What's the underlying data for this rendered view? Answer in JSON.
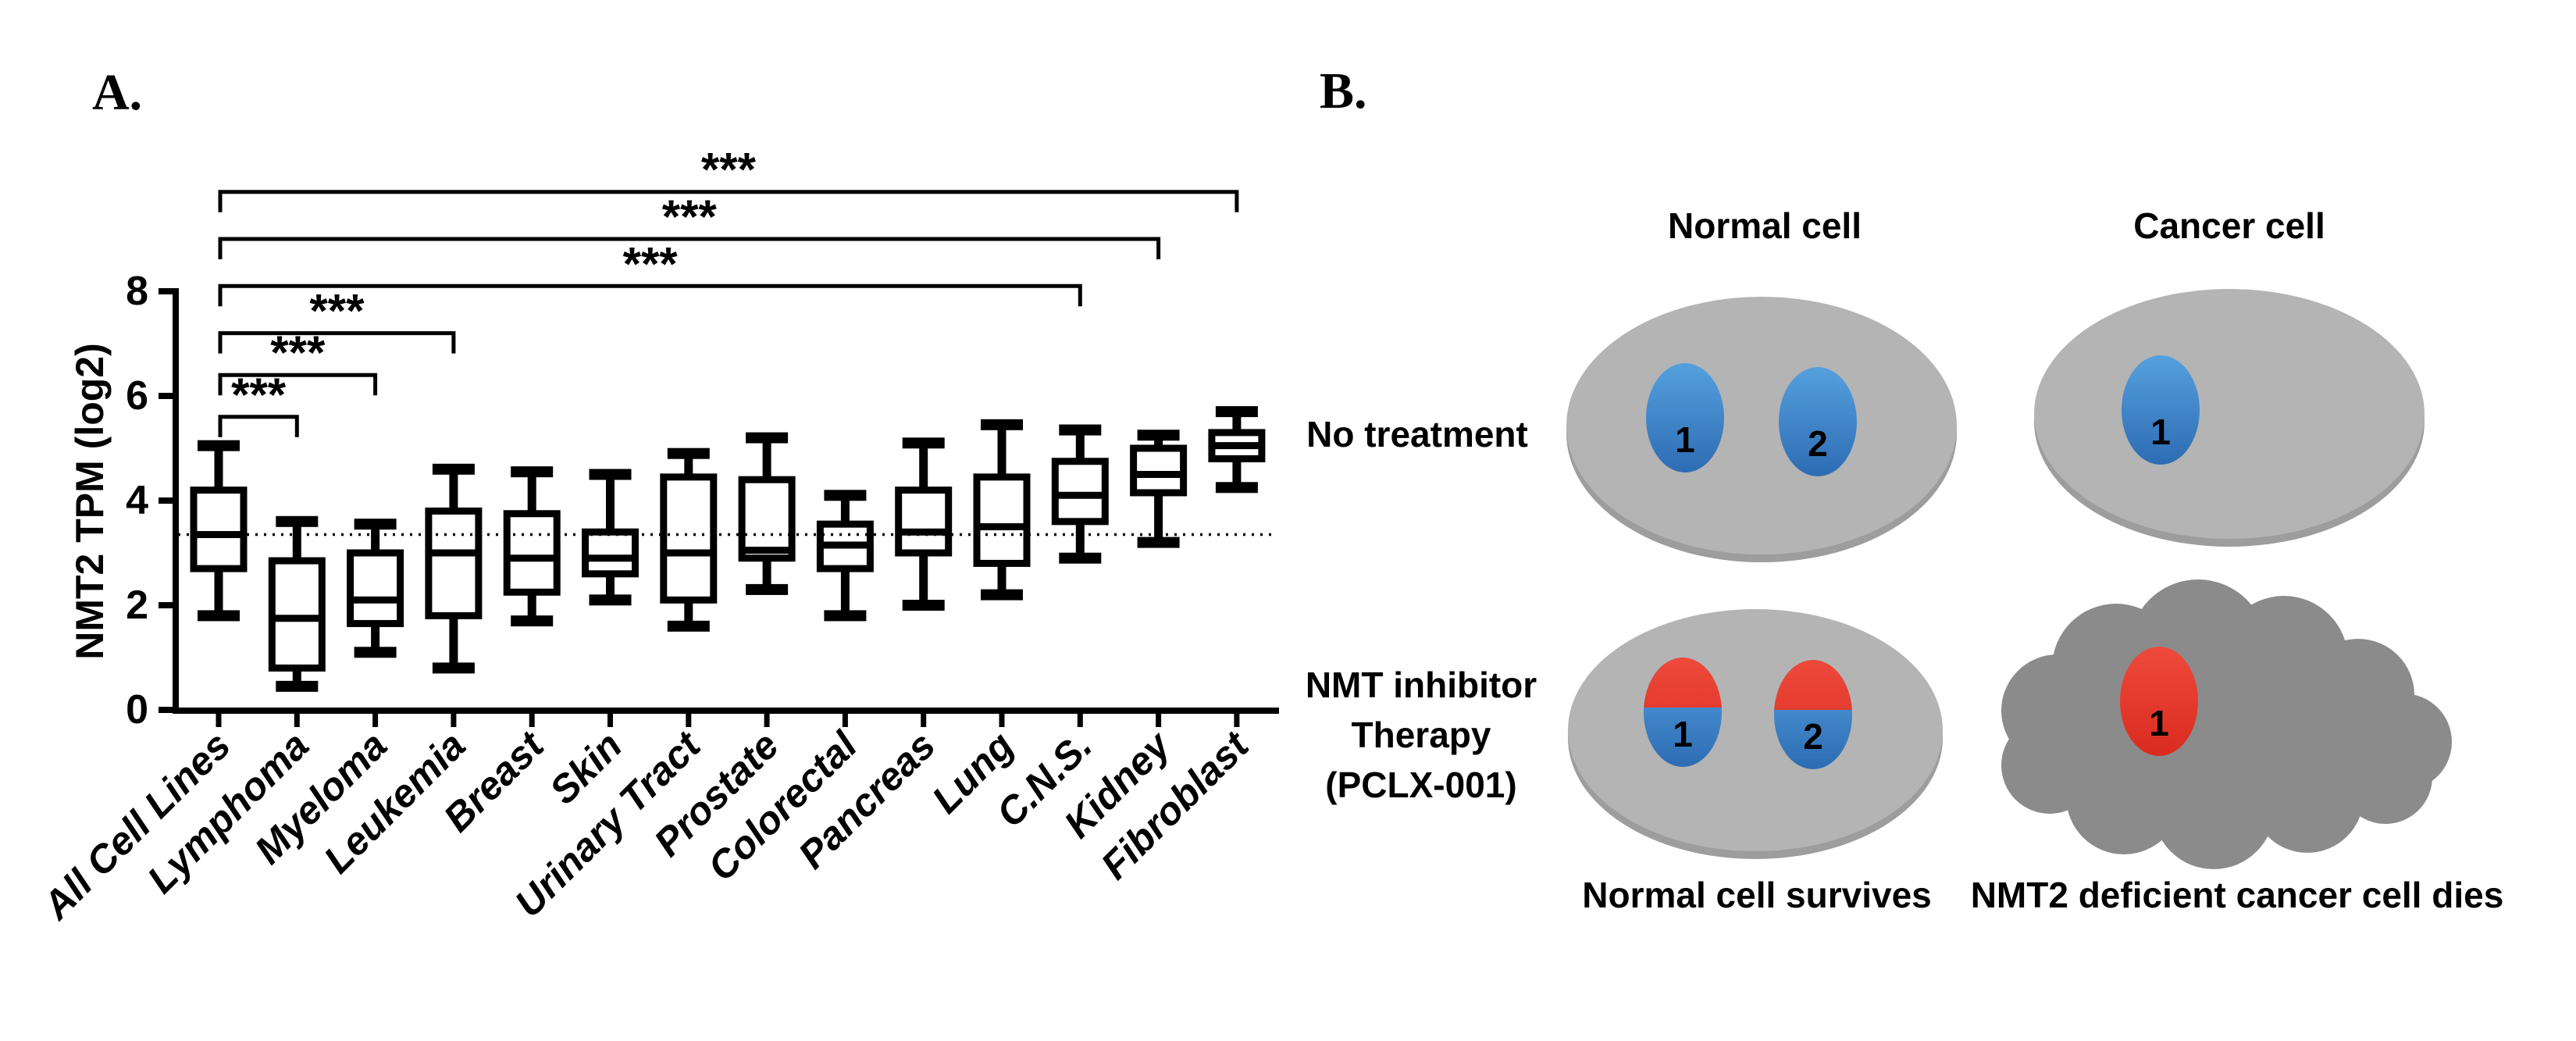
{
  "panel_a": {
    "label": "A.",
    "significance_marker": "***"
  },
  "chart_data": {
    "type": "box",
    "panel": "A",
    "title": "",
    "xlabel": "",
    "ylabel": "NMT2 TPM (log2)",
    "ylim": [
      0,
      8
    ],
    "yticks": [
      0,
      2,
      4,
      6,
      8
    ],
    "grid": false,
    "legend": "none",
    "reference_line_y": 3.35,
    "reference_line_style": "dotted",
    "categories": [
      "All Cell Lines",
      "Lymphoma",
      "Myeloma",
      "Leukemia",
      "Breast",
      "Skin",
      "Urinary Tract",
      "Prostate",
      "Colorectal",
      "Pancreas",
      "Lung",
      "C.N.S.",
      "Kidney",
      "Fibroblast"
    ],
    "boxes": [
      {
        "category": "All Cell Lines",
        "whisker_low": 1.8,
        "q1": 2.7,
        "median": 3.35,
        "q3": 4.2,
        "whisker_high": 5.05
      },
      {
        "category": "Lymphoma",
        "whisker_low": 0.45,
        "q1": 0.8,
        "median": 1.75,
        "q3": 2.85,
        "whisker_high": 3.6
      },
      {
        "category": "Myeloma",
        "whisker_low": 1.1,
        "q1": 1.65,
        "median": 2.1,
        "q3": 3.0,
        "whisker_high": 3.55
      },
      {
        "category": "Leukemia",
        "whisker_low": 0.8,
        "q1": 1.8,
        "median": 3.0,
        "q3": 3.8,
        "whisker_high": 4.6
      },
      {
        "category": "Breast",
        "whisker_low": 1.7,
        "q1": 2.25,
        "median": 2.9,
        "q3": 3.75,
        "whisker_high": 4.55
      },
      {
        "category": "Skin",
        "whisker_low": 2.1,
        "q1": 2.6,
        "median": 2.9,
        "q3": 3.4,
        "whisker_high": 4.5
      },
      {
        "category": "Urinary Tract",
        "whisker_low": 1.6,
        "q1": 2.1,
        "median": 3.0,
        "q3": 4.45,
        "whisker_high": 4.9
      },
      {
        "category": "Prostate",
        "whisker_low": 2.3,
        "q1": 2.9,
        "median": 3.05,
        "q3": 4.4,
        "whisker_high": 5.2
      },
      {
        "category": "Colorectal",
        "whisker_low": 1.8,
        "q1": 2.7,
        "median": 3.15,
        "q3": 3.55,
        "whisker_high": 4.1
      },
      {
        "category": "Pancreas",
        "whisker_low": 2.0,
        "q1": 3.0,
        "median": 3.4,
        "q3": 4.2,
        "whisker_high": 5.1
      },
      {
        "category": "Lung",
        "whisker_low": 2.2,
        "q1": 2.8,
        "median": 3.5,
        "q3": 4.45,
        "whisker_high": 5.45
      },
      {
        "category": "C.N.S.",
        "whisker_low": 2.9,
        "q1": 3.6,
        "median": 4.1,
        "q3": 4.75,
        "whisker_high": 5.35
      },
      {
        "category": "Kidney",
        "whisker_low": 3.2,
        "q1": 4.15,
        "median": 4.5,
        "q3": 5.0,
        "whisker_high": 5.25
      },
      {
        "category": "Fibroblast",
        "whisker_low": 4.25,
        "q1": 4.8,
        "median": 5.05,
        "q3": 5.3,
        "whisker_high": 5.7
      }
    ],
    "significance_brackets": [
      {
        "from": "All Cell Lines",
        "to": "Lymphoma",
        "label": "***",
        "height": 5.6
      },
      {
        "from": "All Cell Lines",
        "to": "Myeloma",
        "label": "***",
        "height": 6.4
      },
      {
        "from": "All Cell Lines",
        "to": "Leukemia",
        "label": "***",
        "height": 7.2
      },
      {
        "from": "All Cell Lines",
        "to": "C.N.S.",
        "label": "***",
        "height": 8.1
      },
      {
        "from": "All Cell Lines",
        "to": "Kidney",
        "label": "***",
        "height": 9.0
      },
      {
        "from": "All Cell Lines",
        "to": "Fibroblast",
        "label": "***",
        "height": 9.9
      }
    ]
  },
  "panel_b": {
    "label": "B.",
    "column_headers": [
      "Normal cell",
      "Cancer cell"
    ],
    "row_labels": [
      [
        "No treatment"
      ],
      [
        "NMT inhibitor",
        "Therapy",
        "(PCLX-001)"
      ]
    ],
    "captions": [
      "Normal cell survives",
      "NMT2 deficient cancer cell dies"
    ],
    "cells": [
      {
        "row": 0,
        "col": 0,
        "body": "ellipse",
        "nuclei": [
          {
            "label": "1",
            "style": "blue"
          },
          {
            "label": "2",
            "style": "blue"
          }
        ]
      },
      {
        "row": 0,
        "col": 1,
        "body": "ellipse",
        "nuclei": [
          {
            "label": "1",
            "style": "blue"
          }
        ]
      },
      {
        "row": 1,
        "col": 0,
        "body": "ellipse",
        "nuclei": [
          {
            "label": "1",
            "style": "half-red-blue"
          },
          {
            "label": "2",
            "style": "half-red-blue"
          }
        ]
      },
      {
        "row": 1,
        "col": 1,
        "body": "cloud",
        "nuclei": [
          {
            "label": "1",
            "style": "red"
          }
        ]
      }
    ],
    "colors": {
      "cell_body": "#b4b4b4",
      "cell_body_shadow": "#9d9d9d",
      "dying_cell_body": "#8b8b8b",
      "nucleus_blue_top": "#55a0de",
      "nucleus_blue_bottom": "#2d6cb3",
      "nucleus_red_top": "#ee4a3c",
      "nucleus_red_bottom": "#d92b1f",
      "nucleus_label": "#ffffff",
      "text": "#000000"
    }
  }
}
